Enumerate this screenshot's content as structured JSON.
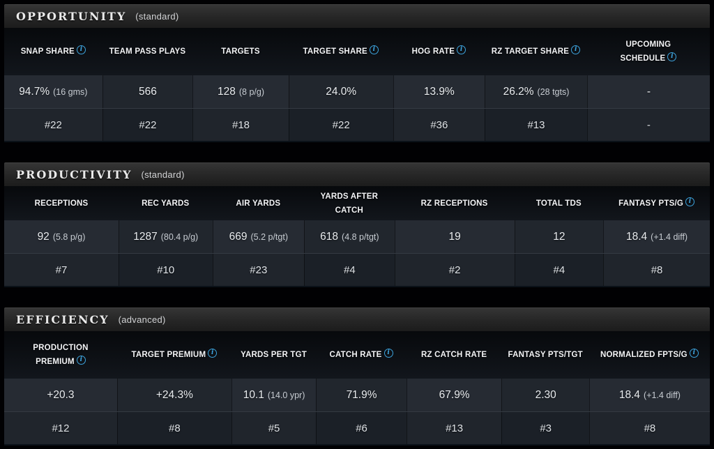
{
  "accent_color": "#3da4de",
  "icons": {
    "info": "circled-italic-i"
  },
  "sections": [
    {
      "title": "OPPORTUNITY",
      "subtitle": "(standard)",
      "columns": [
        {
          "label": "SNAP SHARE",
          "info": true,
          "value": "94.7%",
          "note": "(16 gms)",
          "rank": "#22"
        },
        {
          "label": "TEAM PASS PLAYS",
          "info": false,
          "value": "566",
          "note": "",
          "rank": "#22"
        },
        {
          "label": "TARGETS",
          "info": false,
          "value": "128",
          "note": "(8 p/g)",
          "rank": "#18"
        },
        {
          "label": "TARGET SHARE",
          "info": true,
          "value": "24.0%",
          "note": "",
          "rank": "#22"
        },
        {
          "label": "HOG RATE",
          "info": true,
          "value": "13.9%",
          "note": "",
          "rank": "#36"
        },
        {
          "label": "RZ TARGET SHARE",
          "info": true,
          "value": "26.2%",
          "note": "(28 tgts)",
          "rank": "#13"
        },
        {
          "label": "UPCOMING SCHEDULE",
          "info": true,
          "value": "-",
          "note": "",
          "rank": "-"
        }
      ]
    },
    {
      "title": "PRODUCTIVITY",
      "subtitle": "(standard)",
      "columns": [
        {
          "label": "RECEPTIONS",
          "info": false,
          "value": "92",
          "note": "(5.8 p/g)",
          "rank": "#7"
        },
        {
          "label": "REC YARDS",
          "info": false,
          "value": "1287",
          "note": "(80.4 p/g)",
          "rank": "#10"
        },
        {
          "label": "AIR YARDS",
          "info": false,
          "value": "669",
          "note": "(5.2 p/tgt)",
          "rank": "#23"
        },
        {
          "label": "YARDS AFTER CATCH",
          "info": false,
          "value": "618",
          "note": "(4.8 p/tgt)",
          "rank": "#4"
        },
        {
          "label": "RZ RECEPTIONS",
          "info": false,
          "value": "19",
          "note": "",
          "rank": "#2"
        },
        {
          "label": "TOTAL TDS",
          "info": false,
          "value": "12",
          "note": "",
          "rank": "#4"
        },
        {
          "label": "FANTASY PTS/G",
          "info": true,
          "value": "18.4",
          "note": "(+1.4 diff)",
          "rank": "#8"
        }
      ]
    },
    {
      "title": "EFFICIENCY",
      "subtitle": "(advanced)",
      "columns": [
        {
          "label": "PRODUCTION PREMIUM",
          "info": true,
          "value": "+20.3",
          "note": "",
          "rank": "#12"
        },
        {
          "label": "TARGET PREMIUM",
          "info": true,
          "value": "+24.3%",
          "note": "",
          "rank": "#8"
        },
        {
          "label": "YARDS PER TGT",
          "info": false,
          "value": "10.1",
          "note": "(14.0 ypr)",
          "rank": "#5"
        },
        {
          "label": "CATCH RATE",
          "info": true,
          "value": "71.9%",
          "note": "",
          "rank": "#6"
        },
        {
          "label": "RZ CATCH RATE",
          "info": false,
          "value": "67.9%",
          "note": "",
          "rank": "#13"
        },
        {
          "label": "FANTASY PTS/TGT",
          "info": false,
          "value": "2.30",
          "note": "",
          "rank": "#3"
        },
        {
          "label": "NORMALIZED FPTS/G",
          "info": true,
          "value": "18.4",
          "note": "(+1.4 diff)",
          "rank": "#8"
        }
      ]
    }
  ]
}
